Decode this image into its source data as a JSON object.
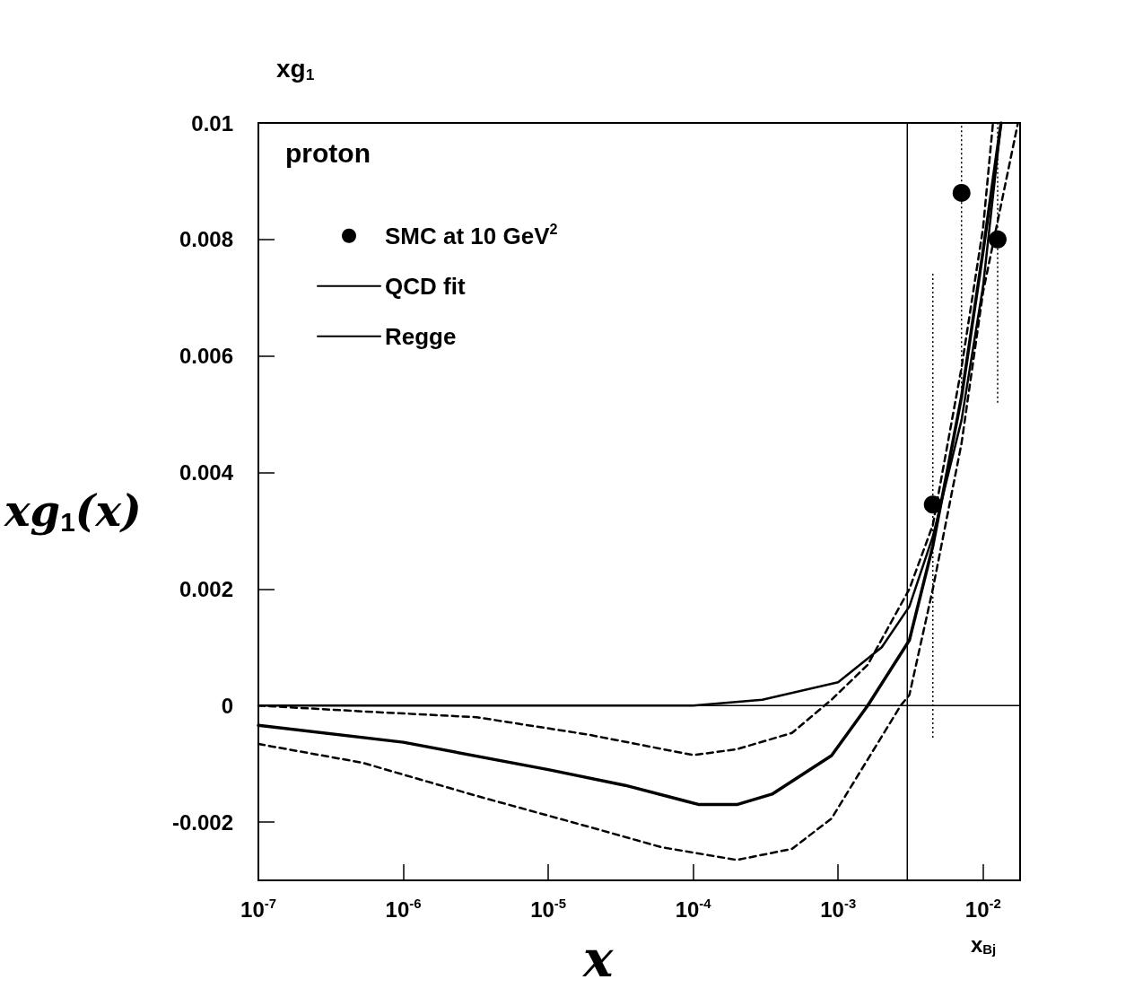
{
  "chart_data": {
    "type": "line",
    "ylabel": "xg$_{1}$",
    "xlabel": "x$_{Bj}$",
    "annotations": [
      "proton",
      "xg$_{1}$(x)",
      "x"
    ],
    "log": "x",
    "grid": false,
    "legend": "top left",
    "xlim": [
      1e-07,
      0.018
    ],
    "xticks": [
      {
        "value": 1e-07,
        "label": "10$^{-7}$"
      },
      {
        "value": 1e-06,
        "label": "10$^{-6}$"
      },
      {
        "value": 1e-05,
        "label": "10$^{-5}$"
      },
      {
        "value": 0.0001,
        "label": "10$^{-4}$"
      },
      {
        "value": 0.001,
        "label": "10$^{-3}$"
      },
      {
        "value": 0.01,
        "label": "10$^{-2}$"
      }
    ],
    "ylim": [
      -0.003,
      0.01
    ],
    "yticks": [
      -0.002,
      0,
      0.002,
      0.004,
      0.006,
      0.008,
      0.01
    ],
    "ref_lines": [
      {
        "axis": "x",
        "value": 0.003
      },
      {
        "axis": "y",
        "value": 0
      }
    ],
    "series": [
      {
        "name": "SMC at 10 GeV$^{2}$",
        "type": "scatter",
        "color": "#000000",
        "marker": "circle",
        "x": [
          0.0045,
          0.0071,
          0.0126
        ],
        "values": [
          0.00345,
          0.0088,
          0.008
        ],
        "errors": [
          0.004,
          [
            0.0053,
            0.01
          ],
          [
            0.0052,
            0.01
          ]
        ]
      },
      {
        "name": "QCD fit",
        "color": "#000000",
        "marker": "none",
        "line_style": "solid",
        "x": [
          1e-07,
          1e-06,
          1e-05,
          3.4e-05,
          0.00011,
          0.0002,
          0.00035,
          0.0009,
          0.0016,
          0.0031,
          0.0045,
          0.0071,
          0.01,
          0.0133
        ],
        "values": [
          -0.00034,
          -0.00063,
          -0.0011,
          -0.00137,
          -0.0017,
          -0.0017,
          -0.00152,
          -0.00086,
          0,
          0.00112,
          0.00274,
          0.0053,
          0.0078,
          0.01
        ]
      },
      {
        "name": "Regge",
        "color": "#000000",
        "marker": "none",
        "line_style": "solid",
        "x": [
          1e-07,
          1e-05,
          0.0001,
          0.0003,
          0.001,
          0.002,
          0.0031,
          0.0045,
          0.0071,
          0.01,
          0.0133
        ],
        "values": [
          0,
          0,
          0,
          0.0001,
          0.0004,
          0.001,
          0.0017,
          0.0029,
          0.0049,
          0.0072,
          0.01
        ]
      },
      {
        "color": "#000000",
        "marker": "none",
        "line_style": "dashed",
        "x": [
          1e-07,
          5.2e-07,
          3.2e-06,
          1.9e-05,
          0.0001,
          0.0002,
          0.00048,
          0.0009,
          0.0016,
          0.0031,
          0.0045,
          0.0071,
          0.01,
          0.0117
        ],
        "values": [
          0,
          -0.0001,
          -0.0002,
          -0.0005,
          -0.00085,
          -0.00075,
          -0.00047,
          0.0001,
          0.0007,
          0.002,
          0.0031,
          0.0058,
          0.0082,
          0.01
        ]
      },
      {
        "color": "#000000",
        "marker": "none",
        "line_style": "dashed",
        "x": [
          1e-07,
          5.2e-07,
          3.2e-06,
          1.9e-05,
          6e-05,
          0.0002,
          0.00048,
          0.0009,
          0.0027,
          0.0031,
          0.0045,
          0.0071,
          0.01,
          0.0174
        ],
        "values": [
          -0.00066,
          -0.00098,
          -0.00155,
          -0.00208,
          -0.00243,
          -0.00265,
          -0.00246,
          -0.00194,
          0,
          0.00018,
          0.002,
          0.0045,
          0.0071,
          0.01
        ]
      }
    ]
  }
}
